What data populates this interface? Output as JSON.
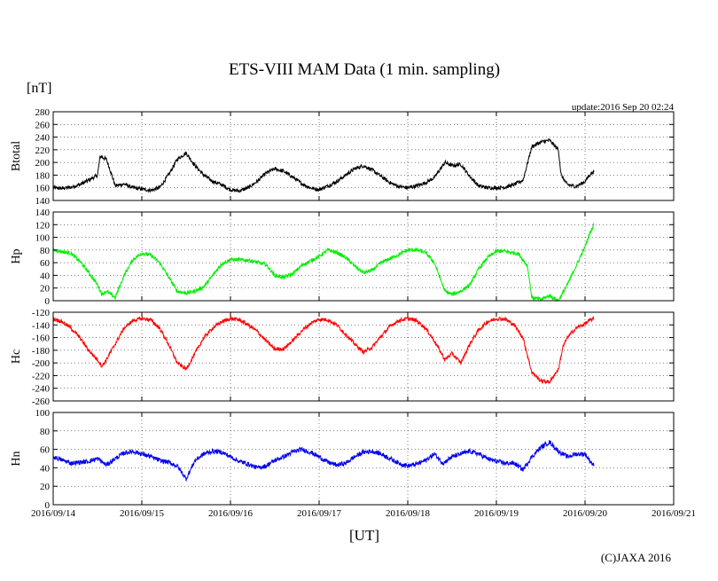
{
  "chart_data": {
    "type": "line",
    "title": "ETS-VIII MAM Data (1 min. sampling)",
    "unit_label": "[nT]",
    "update_label": "update:2016 Sep 20 02:24",
    "xlabel": "[UT]",
    "credit": "(C)JAXA 2016",
    "x_ticks": [
      "2016/09/14",
      "2016/09/15",
      "2016/09/16",
      "2016/09/17",
      "2016/09/18",
      "2016/09/19",
      "2016/09/20",
      "2016/09/21"
    ],
    "x_range_days": [
      0,
      7
    ],
    "data_end_day": 6.1,
    "grid": true,
    "panels": [
      {
        "ylabel": "Btotal",
        "color": "#000000",
        "ylim": [
          140,
          280
        ],
        "yticks": [
          140,
          160,
          180,
          200,
          220,
          240,
          260,
          280
        ],
        "noise": 3,
        "points": [
          [
            0,
            160
          ],
          [
            0.1,
            159
          ],
          [
            0.2,
            161
          ],
          [
            0.3,
            165
          ],
          [
            0.4,
            172
          ],
          [
            0.5,
            180
          ],
          [
            0.53,
            210
          ],
          [
            0.6,
            205
          ],
          [
            0.65,
            185
          ],
          [
            0.7,
            163
          ],
          [
            0.8,
            166
          ],
          [
            0.9,
            160
          ],
          [
            1.0,
            158
          ],
          [
            1.1,
            156
          ],
          [
            1.2,
            160
          ],
          [
            1.3,
            180
          ],
          [
            1.4,
            205
          ],
          [
            1.5,
            215
          ],
          [
            1.6,
            195
          ],
          [
            1.7,
            180
          ],
          [
            1.8,
            170
          ],
          [
            1.9,
            165
          ],
          [
            2.0,
            157
          ],
          [
            2.1,
            155
          ],
          [
            2.2,
            160
          ],
          [
            2.3,
            170
          ],
          [
            2.4,
            183
          ],
          [
            2.5,
            190
          ],
          [
            2.6,
            186
          ],
          [
            2.7,
            177
          ],
          [
            2.8,
            167
          ],
          [
            2.9,
            160
          ],
          [
            3.0,
            157
          ],
          [
            3.1,
            163
          ],
          [
            3.2,
            170
          ],
          [
            3.3,
            180
          ],
          [
            3.4,
            190
          ],
          [
            3.5,
            195
          ],
          [
            3.6,
            188
          ],
          [
            3.7,
            178
          ],
          [
            3.8,
            168
          ],
          [
            3.9,
            162
          ],
          [
            4.0,
            160
          ],
          [
            4.1,
            163
          ],
          [
            4.2,
            168
          ],
          [
            4.3,
            176
          ],
          [
            4.42,
            200
          ],
          [
            4.5,
            195
          ],
          [
            4.6,
            197
          ],
          [
            4.7,
            178
          ],
          [
            4.8,
            163
          ],
          [
            4.9,
            160
          ],
          [
            5.0,
            160
          ],
          [
            5.1,
            161
          ],
          [
            5.2,
            165
          ],
          [
            5.3,
            172
          ],
          [
            5.4,
            225
          ],
          [
            5.5,
            232
          ],
          [
            5.6,
            235
          ],
          [
            5.7,
            220
          ],
          [
            5.73,
            180
          ],
          [
            5.8,
            165
          ],
          [
            5.9,
            162
          ],
          [
            6.0,
            170
          ],
          [
            6.05,
            180
          ],
          [
            6.1,
            186
          ]
        ]
      },
      {
        "ylabel": "Hp",
        "color": "#00ee00",
        "ylim": [
          0,
          140
        ],
        "yticks": [
          0,
          20,
          40,
          60,
          80,
          100,
          120,
          140
        ],
        "noise": 3,
        "points": [
          [
            0,
            80
          ],
          [
            0.2,
            75
          ],
          [
            0.3,
            62
          ],
          [
            0.4,
            45
          ],
          [
            0.5,
            25
          ],
          [
            0.55,
            10
          ],
          [
            0.6,
            15
          ],
          [
            0.7,
            5
          ],
          [
            0.8,
            40
          ],
          [
            0.9,
            65
          ],
          [
            1.0,
            75
          ],
          [
            1.1,
            72
          ],
          [
            1.2,
            60
          ],
          [
            1.3,
            38
          ],
          [
            1.4,
            15
          ],
          [
            1.5,
            12
          ],
          [
            1.6,
            15
          ],
          [
            1.7,
            22
          ],
          [
            1.8,
            40
          ],
          [
            1.9,
            58
          ],
          [
            2.0,
            65
          ],
          [
            2.2,
            64
          ],
          [
            2.4,
            57
          ],
          [
            2.5,
            40
          ],
          [
            2.6,
            37
          ],
          [
            2.7,
            42
          ],
          [
            2.8,
            55
          ],
          [
            3.0,
            70
          ],
          [
            3.1,
            80
          ],
          [
            3.2,
            76
          ],
          [
            3.3,
            68
          ],
          [
            3.4,
            55
          ],
          [
            3.5,
            44
          ],
          [
            3.6,
            48
          ],
          [
            3.7,
            60
          ],
          [
            3.9,
            73
          ],
          [
            4.0,
            80
          ],
          [
            4.1,
            80
          ],
          [
            4.2,
            76
          ],
          [
            4.3,
            60
          ],
          [
            4.42,
            15
          ],
          [
            4.5,
            10
          ],
          [
            4.6,
            15
          ],
          [
            4.7,
            25
          ],
          [
            4.8,
            50
          ],
          [
            4.9,
            68
          ],
          [
            5.0,
            78
          ],
          [
            5.1,
            78
          ],
          [
            5.25,
            74
          ],
          [
            5.35,
            55
          ],
          [
            5.4,
            5
          ],
          [
            5.5,
            2
          ],
          [
            5.6,
            8
          ],
          [
            5.7,
            0
          ],
          [
            5.8,
            25
          ],
          [
            5.9,
            55
          ],
          [
            6.0,
            85
          ],
          [
            6.05,
            105
          ],
          [
            6.1,
            120
          ]
        ]
      },
      {
        "ylabel": "Hc",
        "color": "#ff0000",
        "ylim": [
          -260,
          -120
        ],
        "yticks": [
          -260,
          -240,
          -220,
          -200,
          -180,
          -160,
          -140,
          -120
        ],
        "noise": 3,
        "points": [
          [
            0,
            -130
          ],
          [
            0.1,
            -135
          ],
          [
            0.2,
            -145
          ],
          [
            0.3,
            -160
          ],
          [
            0.4,
            -180
          ],
          [
            0.5,
            -195
          ],
          [
            0.55,
            -205
          ],
          [
            0.6,
            -195
          ],
          [
            0.7,
            -170
          ],
          [
            0.8,
            -145
          ],
          [
            0.9,
            -133
          ],
          [
            1.0,
            -130
          ],
          [
            1.1,
            -132
          ],
          [
            1.2,
            -145
          ],
          [
            1.3,
            -170
          ],
          [
            1.4,
            -200
          ],
          [
            1.5,
            -210
          ],
          [
            1.6,
            -185
          ],
          [
            1.7,
            -160
          ],
          [
            1.8,
            -145
          ],
          [
            1.9,
            -135
          ],
          [
            2.0,
            -130
          ],
          [
            2.1,
            -132
          ],
          [
            2.2,
            -140
          ],
          [
            2.3,
            -150
          ],
          [
            2.4,
            -165
          ],
          [
            2.5,
            -178
          ],
          [
            2.6,
            -178
          ],
          [
            2.7,
            -165
          ],
          [
            2.8,
            -150
          ],
          [
            2.9,
            -138
          ],
          [
            3.0,
            -131
          ],
          [
            3.1,
            -132
          ],
          [
            3.2,
            -140
          ],
          [
            3.3,
            -155
          ],
          [
            3.4,
            -170
          ],
          [
            3.5,
            -183
          ],
          [
            3.6,
            -175
          ],
          [
            3.7,
            -158
          ],
          [
            3.8,
            -142
          ],
          [
            3.9,
            -133
          ],
          [
            4.0,
            -130
          ],
          [
            4.1,
            -133
          ],
          [
            4.2,
            -145
          ],
          [
            4.3,
            -165
          ],
          [
            4.42,
            -195
          ],
          [
            4.5,
            -185
          ],
          [
            4.6,
            -200
          ],
          [
            4.7,
            -170
          ],
          [
            4.8,
            -148
          ],
          [
            4.9,
            -135
          ],
          [
            5.0,
            -130
          ],
          [
            5.1,
            -131
          ],
          [
            5.2,
            -140
          ],
          [
            5.3,
            -160
          ],
          [
            5.4,
            -215
          ],
          [
            5.5,
            -228
          ],
          [
            5.6,
            -230
          ],
          [
            5.7,
            -210
          ],
          [
            5.75,
            -175
          ],
          [
            5.8,
            -160
          ],
          [
            5.9,
            -145
          ],
          [
            6.0,
            -138
          ],
          [
            6.05,
            -133
          ],
          [
            6.1,
            -130
          ]
        ]
      },
      {
        "ylabel": "Hn",
        "color": "#0000ee",
        "ylim": [
          0,
          100
        ],
        "yticks": [
          0,
          20,
          40,
          60,
          80,
          100
        ],
        "noise": 2.5,
        "points": [
          [
            0,
            52
          ],
          [
            0.2,
            45
          ],
          [
            0.4,
            47
          ],
          [
            0.5,
            50
          ],
          [
            0.6,
            43
          ],
          [
            0.7,
            50
          ],
          [
            0.8,
            56
          ],
          [
            0.9,
            58
          ],
          [
            1.0,
            55
          ],
          [
            1.1,
            52
          ],
          [
            1.2,
            48
          ],
          [
            1.3,
            46
          ],
          [
            1.4,
            42
          ],
          [
            1.5,
            28
          ],
          [
            1.6,
            48
          ],
          [
            1.7,
            55
          ],
          [
            1.8,
            58
          ],
          [
            1.9,
            57
          ],
          [
            2.0,
            52
          ],
          [
            2.1,
            47
          ],
          [
            2.2,
            44
          ],
          [
            2.3,
            40
          ],
          [
            2.4,
            42
          ],
          [
            2.5,
            48
          ],
          [
            2.6,
            52
          ],
          [
            2.7,
            57
          ],
          [
            2.8,
            60
          ],
          [
            2.9,
            57
          ],
          [
            3.0,
            52
          ],
          [
            3.1,
            46
          ],
          [
            3.2,
            43
          ],
          [
            3.3,
            45
          ],
          [
            3.4,
            52
          ],
          [
            3.5,
            57
          ],
          [
            3.6,
            58
          ],
          [
            3.7,
            55
          ],
          [
            3.8,
            50
          ],
          [
            3.9,
            45
          ],
          [
            4.0,
            42
          ],
          [
            4.1,
            44
          ],
          [
            4.2,
            48
          ],
          [
            4.3,
            55
          ],
          [
            4.4,
            45
          ],
          [
            4.5,
            52
          ],
          [
            4.6,
            55
          ],
          [
            4.7,
            58
          ],
          [
            4.8,
            55
          ],
          [
            4.9,
            50
          ],
          [
            5.0,
            47
          ],
          [
            5.1,
            45
          ],
          [
            5.2,
            45
          ],
          [
            5.3,
            38
          ],
          [
            5.4,
            52
          ],
          [
            5.5,
            62
          ],
          [
            5.6,
            68
          ],
          [
            5.7,
            58
          ],
          [
            5.8,
            52
          ],
          [
            5.9,
            55
          ],
          [
            6.0,
            55
          ],
          [
            6.1,
            42
          ]
        ]
      }
    ]
  }
}
